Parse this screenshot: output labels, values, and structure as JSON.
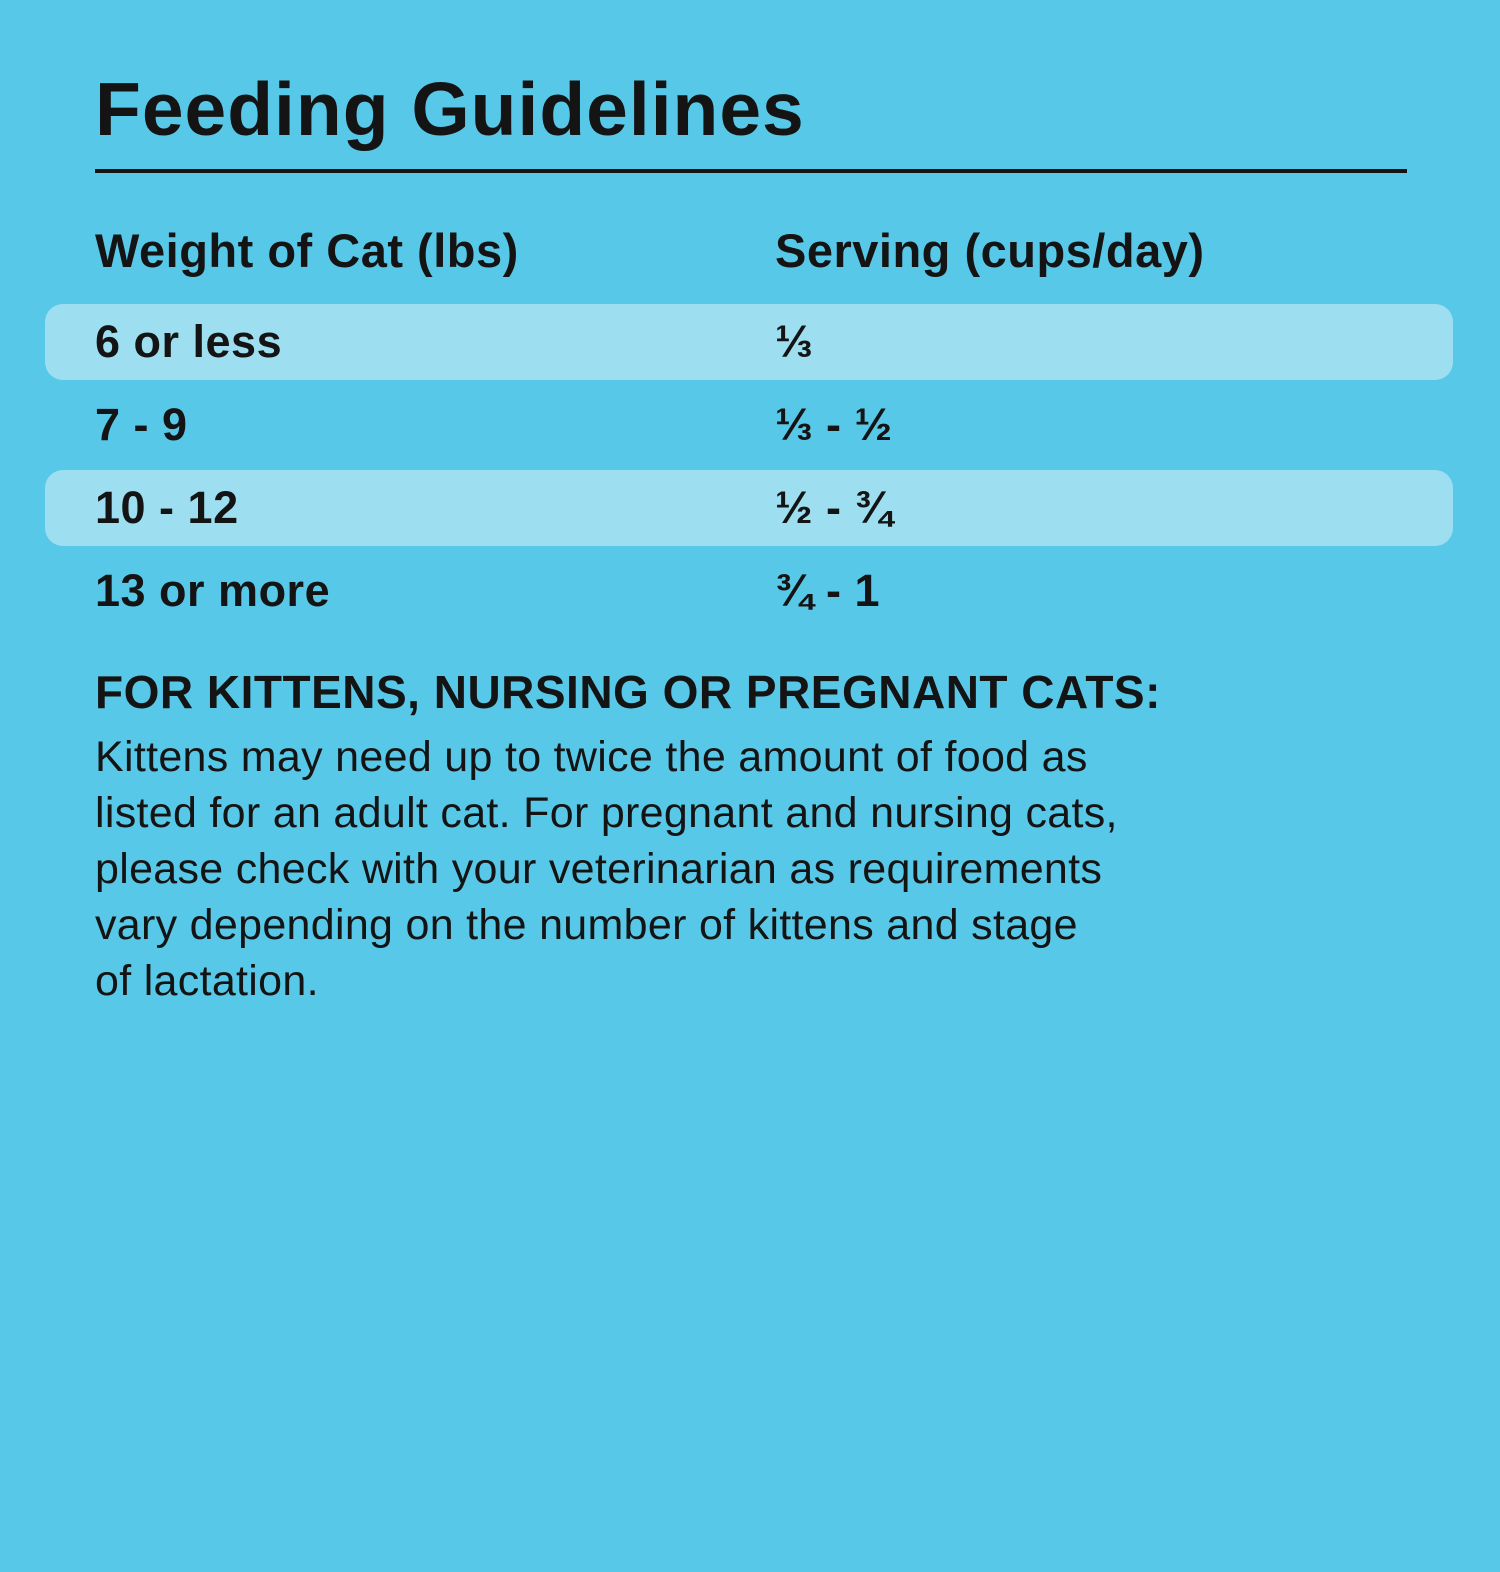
{
  "title": "Feeding Guidelines",
  "table": {
    "headers": {
      "weight": "Weight of Cat (lbs)",
      "serving": "Serving (cups/day)"
    },
    "rows": [
      {
        "weight": "6 or less",
        "serving": "⅓",
        "highlighted": true
      },
      {
        "weight": "7 - 9",
        "serving": "⅓ - ½",
        "highlighted": false
      },
      {
        "weight": "10 - 12",
        "serving": "½ - ¾",
        "highlighted": true
      },
      {
        "weight": "13 or more",
        "serving": "¾ - 1",
        "highlighted": false
      }
    ]
  },
  "note": {
    "heading": "FOR KITTENS, NURSING OR PREGNANT CATS:",
    "lines": [
      "Kittens may need up to twice the amount of food as",
      "listed for an adult cat. For pregnant and nursing cats,",
      "please check with your veterinarian as requirements",
      "vary depending on the number of kittens and stage",
      "of lactation."
    ]
  },
  "colors": {
    "background": "#58C8E8",
    "row_highlight": "#9DDFF0",
    "text": "#141414"
  }
}
